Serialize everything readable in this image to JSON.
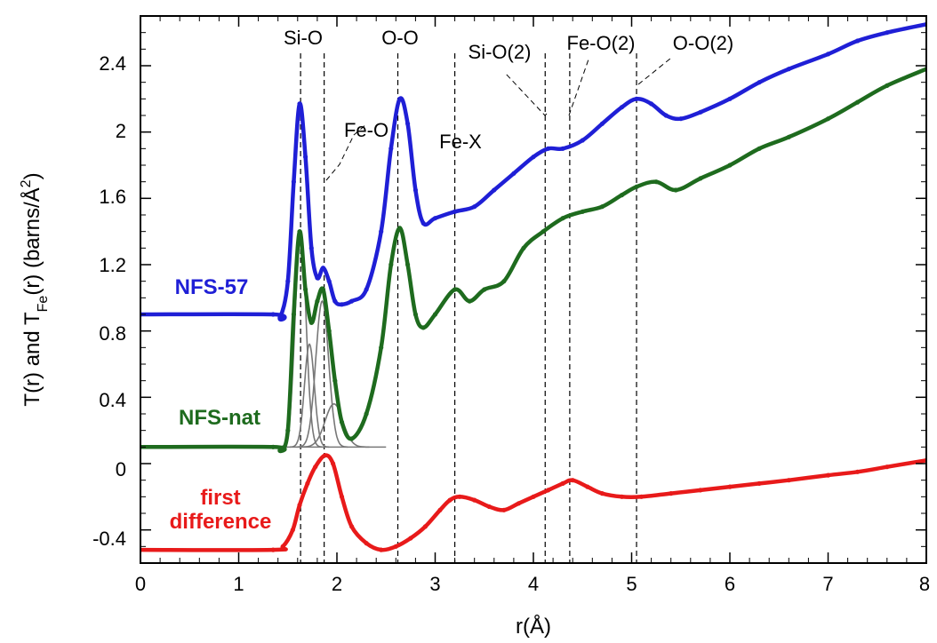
{
  "chart_data": {
    "type": "line",
    "xlabel": "r(Å)",
    "ylabel": "T(r) and T",
    "ylabel_sub": "Fe",
    "ylabel_tail": "(r) (barns/Å",
    "ylabel_sup": "2",
    "ylabel_close": ")",
    "xlim": [
      0,
      8
    ],
    "ylim": [
      -0.6,
      2.7
    ],
    "xticks": [
      0,
      1,
      2,
      3,
      4,
      5,
      6,
      7,
      8
    ],
    "yticks": [
      -0.4,
      0,
      0.4,
      0.8,
      1.2,
      1.6,
      2,
      2.4
    ],
    "xtick_labels": [
      "0",
      "1",
      "2",
      "3",
      "4",
      "5",
      "6",
      "7",
      "8"
    ],
    "ytick_labels": [
      "-0.4",
      "0",
      "0.4",
      "0.8",
      "1.2",
      "1.6",
      "2",
      "2.4"
    ],
    "series": [
      {
        "name": "NFS-57",
        "color": "#1f1fd6",
        "x": [
          0,
          1.35,
          1.42,
          1.5,
          1.56,
          1.62,
          1.68,
          1.74,
          1.8,
          1.86,
          1.92,
          1.98,
          2.05,
          2.15,
          2.3,
          2.45,
          2.55,
          2.64,
          2.72,
          2.8,
          2.88,
          3.0,
          3.2,
          3.4,
          3.6,
          3.8,
          4.0,
          4.15,
          4.3,
          4.5,
          4.7,
          4.9,
          5.05,
          5.2,
          5.35,
          5.5,
          5.7,
          6.0,
          6.3,
          6.6,
          7.0,
          7.3,
          7.6,
          8.0
        ],
        "y": [
          0.9,
          0.9,
          0.88,
          1.1,
          1.7,
          2.17,
          1.85,
          1.3,
          1.12,
          1.18,
          1.1,
          0.98,
          0.96,
          0.98,
          1.05,
          1.4,
          1.9,
          2.2,
          2.05,
          1.65,
          1.45,
          1.48,
          1.52,
          1.55,
          1.65,
          1.75,
          1.85,
          1.9,
          1.9,
          1.95,
          2.05,
          2.15,
          2.2,
          2.17,
          2.1,
          2.08,
          2.12,
          2.2,
          2.3,
          2.38,
          2.47,
          2.55,
          2.6,
          2.65
        ]
      },
      {
        "name": "NFS-nat",
        "color": "#1e6b1e",
        "x": [
          0,
          1.35,
          1.42,
          1.5,
          1.56,
          1.62,
          1.68,
          1.74,
          1.8,
          1.86,
          1.92,
          1.98,
          2.05,
          2.15,
          2.3,
          2.45,
          2.55,
          2.64,
          2.72,
          2.8,
          2.88,
          3.0,
          3.2,
          3.35,
          3.5,
          3.7,
          3.9,
          4.1,
          4.3,
          4.5,
          4.7,
          4.9,
          5.05,
          5.25,
          5.45,
          5.7,
          6.0,
          6.3,
          6.6,
          7.0,
          7.3,
          7.6,
          8.0
        ],
        "y": [
          0.1,
          0.1,
          0.08,
          0.2,
          0.9,
          1.4,
          1.05,
          0.85,
          0.98,
          1.05,
          0.8,
          0.5,
          0.25,
          0.15,
          0.3,
          0.7,
          1.2,
          1.42,
          1.2,
          0.9,
          0.82,
          0.9,
          1.05,
          0.98,
          1.05,
          1.1,
          1.3,
          1.4,
          1.48,
          1.52,
          1.55,
          1.62,
          1.67,
          1.7,
          1.65,
          1.72,
          1.8,
          1.9,
          1.97,
          2.08,
          2.18,
          2.28,
          2.38
        ]
      },
      {
        "name": "first difference",
        "color": "#e81a1a",
        "x": [
          0,
          1.35,
          1.45,
          1.55,
          1.62,
          1.7,
          1.78,
          1.88,
          1.96,
          2.05,
          2.15,
          2.3,
          2.45,
          2.6,
          2.75,
          2.9,
          3.05,
          3.15,
          3.25,
          3.4,
          3.55,
          3.7,
          3.85,
          4.0,
          4.15,
          4.3,
          4.4,
          4.55,
          4.7,
          4.9,
          5.1,
          5.4,
          5.7,
          6.0,
          6.3,
          6.6,
          7.0,
          7.3,
          7.6,
          8.0
        ],
        "y": [
          -0.52,
          -0.52,
          -0.5,
          -0.4,
          -0.25,
          -0.12,
          -0.02,
          0.05,
          0.0,
          -0.2,
          -0.38,
          -0.48,
          -0.52,
          -0.5,
          -0.45,
          -0.38,
          -0.28,
          -0.22,
          -0.2,
          -0.22,
          -0.26,
          -0.28,
          -0.24,
          -0.2,
          -0.16,
          -0.12,
          -0.1,
          -0.14,
          -0.18,
          -0.2,
          -0.2,
          -0.18,
          -0.16,
          -0.14,
          -0.12,
          -0.1,
          -0.07,
          -0.05,
          -0.02,
          0.02
        ]
      }
    ],
    "gaussian_components": [
      {
        "center": 1.63,
        "height": 1.3,
        "sigma": 0.055
      },
      {
        "center": 1.72,
        "height": 0.62,
        "sigma": 0.05
      },
      {
        "center": 1.85,
        "height": 0.88,
        "sigma": 0.065
      },
      {
        "center": 1.97,
        "height": 0.26,
        "sigma": 0.09
      }
    ],
    "gaussian_baseline": 0.1,
    "gaussian_xrange": [
      1.45,
      2.5
    ],
    "gaussian_color": "#777777",
    "reference_lines": [
      {
        "label": "Si-O",
        "x": 1.63
      },
      {
        "label": "Fe-O",
        "x": 1.87
      },
      {
        "label": "O-O",
        "x": 2.62
      },
      {
        "label": "Fe-X",
        "x": 3.2
      },
      {
        "label": "Si-O(2)",
        "x": 4.12
      },
      {
        "label": "Fe-O(2)",
        "x": 4.37
      },
      {
        "label": "O-O(2)",
        "x": 5.05
      }
    ]
  }
}
